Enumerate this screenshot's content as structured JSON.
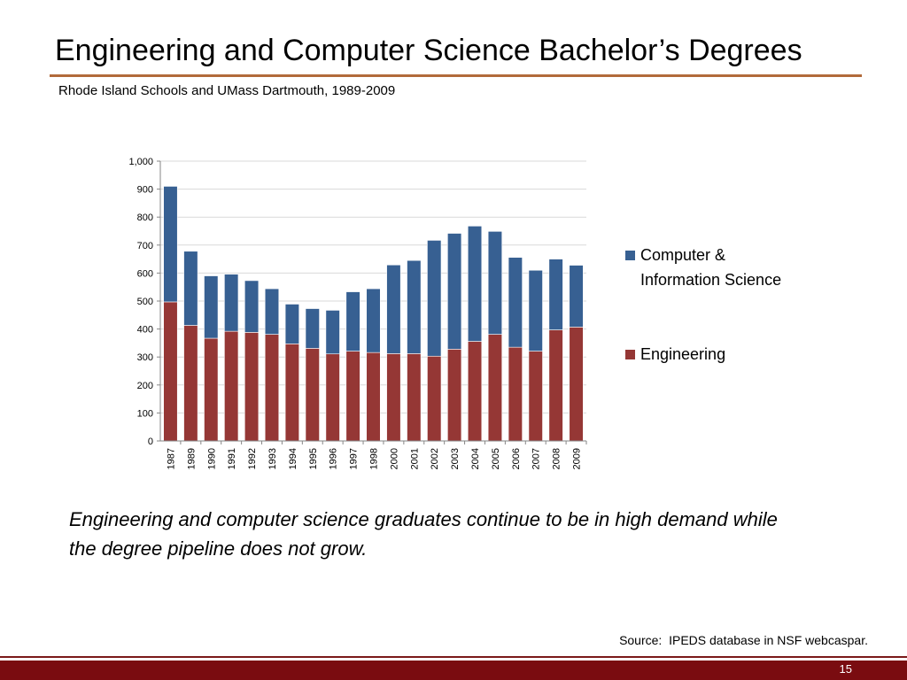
{
  "slide": {
    "title": "Engineering and Computer Science Bachelor’s Degrees",
    "subtitle": "Rhode Island Schools and UMass Dartmouth, 1989-2009",
    "callout": "Engineering and computer science graduates continue to be in high demand while the degree pipeline does not grow.",
    "source": "Source:  IPEDS database in NSF webcaspar.",
    "page_number": "15"
  },
  "colors": {
    "engineering": "#953735",
    "computer_science": "#376092",
    "footer": "#7a0c10",
    "title_rule": "#b26a3a"
  },
  "chart_data": {
    "type": "bar",
    "stacked": true,
    "categories": [
      "1987",
      "1989",
      "1990",
      "1991",
      "1992",
      "1993",
      "1994",
      "1995",
      "1996",
      "1997",
      "1998",
      "2000",
      "2001",
      "2002",
      "2003",
      "2004",
      "2005",
      "2006",
      "2007",
      "2008",
      "2009"
    ],
    "series": [
      {
        "name": "Engineering",
        "color": "#953735",
        "values": [
          497,
          413,
          367,
          392,
          388,
          381,
          347,
          331,
          311,
          321,
          316,
          312,
          312,
          303,
          328,
          356,
          381,
          335,
          321,
          397,
          407
        ]
      },
      {
        "name": "Computer & Information Science",
        "color": "#376092",
        "values": [
          413,
          265,
          223,
          204,
          185,
          163,
          142,
          142,
          156,
          212,
          228,
          317,
          333,
          414,
          414,
          412,
          368,
          321,
          289,
          253,
          221
        ]
      }
    ],
    "legend": [
      "Computer & Information Science",
      "Engineering"
    ],
    "legend_lines": [
      [
        "Computer &",
        "Information Science"
      ],
      [
        "Engineering"
      ]
    ],
    "ylim": [
      0,
      1000
    ],
    "yticks": [
      0,
      100,
      200,
      300,
      400,
      500,
      600,
      700,
      800,
      900,
      1000
    ],
    "ytick_labels": [
      "0",
      "100",
      "200",
      "300",
      "400",
      "500",
      "600",
      "700",
      "800",
      "900",
      "1,000"
    ],
    "grid": true,
    "legend_position": "right"
  }
}
